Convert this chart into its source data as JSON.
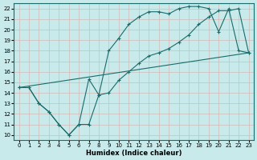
{
  "xlabel": "Humidex (Indice chaleur)",
  "bg_color": "#c8eaea",
  "grid_color": "#d4b8b8",
  "line_color": "#1a6b6b",
  "xlim": [
    -0.5,
    23.5
  ],
  "ylim": [
    9.5,
    22.5
  ],
  "xticks": [
    0,
    1,
    2,
    3,
    4,
    5,
    6,
    7,
    8,
    9,
    10,
    11,
    12,
    13,
    14,
    15,
    16,
    17,
    18,
    19,
    20,
    21,
    22,
    23
  ],
  "yticks": [
    10,
    11,
    12,
    13,
    14,
    15,
    16,
    17,
    18,
    19,
    20,
    21,
    22
  ],
  "line1_x": [
    0,
    1,
    2,
    3,
    4,
    5,
    6,
    7,
    8,
    9,
    10,
    11,
    12,
    13,
    14,
    15,
    16,
    17,
    18,
    19,
    20,
    21,
    22,
    23
  ],
  "line1_y": [
    14.5,
    14.5,
    13.0,
    12.2,
    11.0,
    10.0,
    11.0,
    15.3,
    13.8,
    18.0,
    19.2,
    20.5,
    21.2,
    21.7,
    21.7,
    21.5,
    22.0,
    22.2,
    22.2,
    22.0,
    19.8,
    22.0,
    18.0,
    17.8
  ],
  "line2_x": [
    0,
    1,
    2,
    3,
    4,
    5,
    6,
    7,
    8,
    9,
    10,
    11,
    12,
    13,
    14,
    15,
    16,
    17,
    18,
    19,
    20,
    21,
    22,
    23
  ],
  "line2_y": [
    14.5,
    14.5,
    13.0,
    12.2,
    11.0,
    10.0,
    11.0,
    11.0,
    13.8,
    14.0,
    15.2,
    16.0,
    16.8,
    17.5,
    17.8,
    18.2,
    18.8,
    19.5,
    20.5,
    21.2,
    21.8,
    21.8,
    22.0,
    17.8
  ],
  "line3_x": [
    0,
    23
  ],
  "line3_y": [
    14.5,
    17.8
  ]
}
